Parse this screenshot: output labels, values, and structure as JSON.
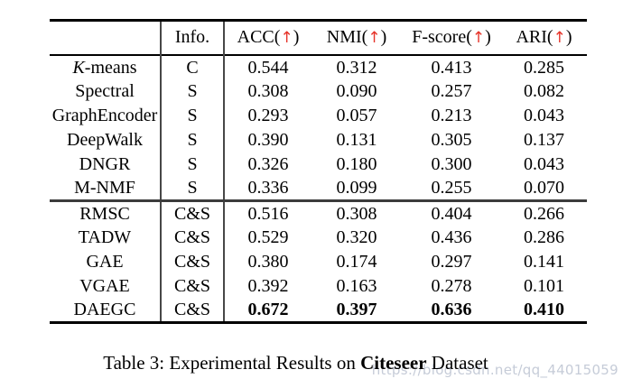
{
  "table": {
    "info_header": "Info.",
    "metric_headers": [
      {
        "label": "ACC",
        "arrow": "↑"
      },
      {
        "label": "NMI",
        "arrow": "↑"
      },
      {
        "label": "F-score",
        "arrow": "↑"
      },
      {
        "label": "ARI",
        "arrow": "↑"
      }
    ],
    "groups": [
      {
        "rows": [
          {
            "method_italic": "K",
            "method": "-means",
            "info": "C",
            "values": [
              "0.544",
              "0.312",
              "0.413",
              "0.285"
            ],
            "bold": false
          },
          {
            "method_italic": "",
            "method": "Spectral",
            "info": "S",
            "values": [
              "0.308",
              "0.090",
              "0.257",
              "0.082"
            ],
            "bold": false
          },
          {
            "method_italic": "",
            "method": "GraphEncoder",
            "info": "S",
            "values": [
              "0.293",
              "0.057",
              "0.213",
              "0.043"
            ],
            "bold": false
          },
          {
            "method_italic": "",
            "method": "DeepWalk",
            "info": "S",
            "values": [
              "0.390",
              "0.131",
              "0.305",
              "0.137"
            ],
            "bold": false
          },
          {
            "method_italic": "",
            "method": "DNGR",
            "info": "S",
            "values": [
              "0.326",
              "0.180",
              "0.300",
              "0.043"
            ],
            "bold": false
          },
          {
            "method_italic": "",
            "method": "M-NMF",
            "info": "S",
            "values": [
              "0.336",
              "0.099",
              "0.255",
              "0.070"
            ],
            "bold": false
          }
        ]
      },
      {
        "rows": [
          {
            "method_italic": "",
            "method": "RMSC",
            "info": "C&S",
            "values": [
              "0.516",
              "0.308",
              "0.404",
              "0.266"
            ],
            "bold": false
          },
          {
            "method_italic": "",
            "method": "TADW",
            "info": "C&S",
            "values": [
              "0.529",
              "0.320",
              "0.436",
              "0.286"
            ],
            "bold": false
          },
          {
            "method_italic": "",
            "method": "GAE",
            "info": "C&S",
            "values": [
              "0.380",
              "0.174",
              "0.297",
              "0.141"
            ],
            "bold": false
          },
          {
            "method_italic": "",
            "method": "VGAE",
            "info": "C&S",
            "values": [
              "0.392",
              "0.163",
              "0.278",
              "0.101"
            ],
            "bold": false
          },
          {
            "method_italic": "",
            "method": "DAEGC",
            "info": "C&S",
            "values": [
              "0.672",
              "0.397",
              "0.636",
              "0.410"
            ],
            "bold": true
          }
        ]
      }
    ]
  },
  "caption": {
    "prefix": "Table 3: Experimental Results on ",
    "bold": "Citeseer",
    "suffix": " Dataset"
  },
  "watermark": "https://blog.csdn.net/qq_44015059",
  "colors": {
    "arrow": "#e63329",
    "watermark": "#c6ccd8",
    "rule": "#000000"
  }
}
